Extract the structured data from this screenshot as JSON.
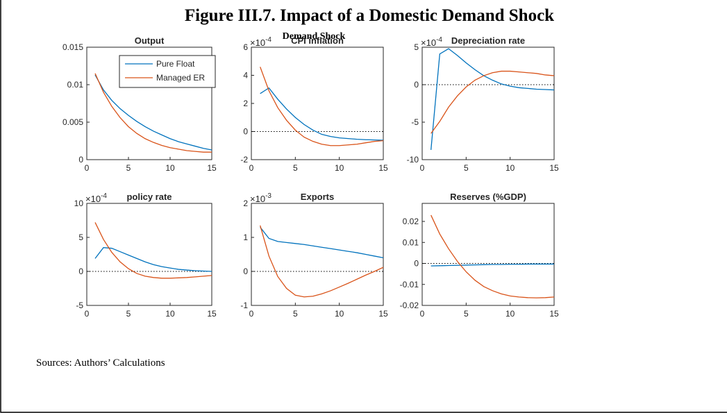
{
  "title": "Figure III.7. Impact of a Domestic Demand Shock",
  "subtitle": "Demand Shock",
  "source": "Sources: Authors’ Calculations",
  "chart_data": [
    {
      "type": "line",
      "title": "Output",
      "legend": "northeast",
      "x": [
        1,
        2,
        3,
        4,
        5,
        6,
        7,
        8,
        9,
        10,
        11,
        12,
        13,
        14,
        15
      ],
      "xlim": [
        0,
        15
      ],
      "xticks": [
        0,
        5,
        10,
        15
      ],
      "ylim": [
        0,
        0.015
      ],
      "yticks": [
        0,
        0.005,
        0.01,
        0.015
      ],
      "zero_line": false,
      "series": [
        {
          "name": "Pure Float",
          "color": "#0072BD",
          "values": [
            0.0113,
            0.0093,
            0.0079,
            0.0068,
            0.0059,
            0.0051,
            0.0044,
            0.0038,
            0.0033,
            0.0028,
            0.0024,
            0.0021,
            0.0018,
            0.0015,
            0.0013
          ]
        },
        {
          "name": "Managed ER",
          "color": "#D95319",
          "values": [
            0.0115,
            0.009,
            0.0071,
            0.0056,
            0.0044,
            0.0035,
            0.0028,
            0.0023,
            0.0019,
            0.0016,
            0.0014,
            0.0012,
            0.0011,
            0.001,
            0.001
          ]
        }
      ]
    },
    {
      "type": "line",
      "title": "CPI inflation",
      "y_scale_label": "×10",
      "y_scale_exponent": "-4",
      "x": [
        1,
        2,
        3,
        4,
        5,
        6,
        7,
        8,
        9,
        10,
        11,
        12,
        13,
        14,
        15
      ],
      "xlim": [
        0,
        15
      ],
      "xticks": [
        0,
        5,
        10,
        15
      ],
      "ylim": [
        -2,
        6
      ],
      "yticks": [
        -2,
        0,
        2,
        4,
        6
      ],
      "zero_line": true,
      "series": [
        {
          "name": "Pure Float",
          "color": "#0072BD",
          "values": [
            2.7,
            3.1,
            2.3,
            1.6,
            1.0,
            0.5,
            0.1,
            -0.2,
            -0.35,
            -0.45,
            -0.5,
            -0.55,
            -0.58,
            -0.6,
            -0.62
          ]
        },
        {
          "name": "Managed ER",
          "color": "#D95319",
          "values": [
            4.6,
            2.9,
            1.7,
            0.8,
            0.1,
            -0.4,
            -0.7,
            -0.9,
            -1.0,
            -1.0,
            -0.95,
            -0.9,
            -0.8,
            -0.7,
            -0.65
          ]
        }
      ]
    },
    {
      "type": "line",
      "title": "Depreciation rate",
      "y_scale_label": "×10",
      "y_scale_exponent": "-4",
      "x": [
        1,
        2,
        3,
        4,
        5,
        6,
        7,
        8,
        9,
        10,
        11,
        12,
        13,
        14,
        15
      ],
      "xlim": [
        0,
        15
      ],
      "xticks": [
        0,
        5,
        10,
        15
      ],
      "ylim": [
        -10,
        5
      ],
      "yticks": [
        -10,
        -5,
        0,
        5
      ],
      "zero_line": true,
      "series": [
        {
          "name": "Pure Float",
          "color": "#0072BD",
          "values": [
            -8.7,
            4.1,
            4.8,
            3.9,
            2.9,
            2.0,
            1.2,
            0.6,
            0.1,
            -0.2,
            -0.4,
            -0.5,
            -0.6,
            -0.65,
            -0.7
          ]
        },
        {
          "name": "Managed ER",
          "color": "#D95319",
          "values": [
            -6.5,
            -4.9,
            -3.0,
            -1.5,
            -0.3,
            0.6,
            1.2,
            1.6,
            1.8,
            1.8,
            1.7,
            1.6,
            1.5,
            1.3,
            1.2
          ]
        }
      ]
    },
    {
      "type": "line",
      "title": "policy rate",
      "y_scale_label": "×10",
      "y_scale_exponent": "-4",
      "x": [
        1,
        2,
        3,
        4,
        5,
        6,
        7,
        8,
        9,
        10,
        11,
        12,
        13,
        14,
        15
      ],
      "xlim": [
        0,
        15
      ],
      "xticks": [
        0,
        5,
        10,
        15
      ],
      "ylim": [
        -5,
        10
      ],
      "yticks": [
        -5,
        0,
        5,
        10
      ],
      "zero_line": true,
      "series": [
        {
          "name": "Pure Float",
          "color": "#0072BD",
          "values": [
            1.9,
            3.5,
            3.4,
            2.9,
            2.4,
            1.9,
            1.4,
            1.0,
            0.7,
            0.5,
            0.3,
            0.2,
            0.1,
            0.05,
            0
          ]
        },
        {
          "name": "Managed ER",
          "color": "#D95319",
          "values": [
            7.2,
            4.7,
            2.8,
            1.4,
            0.4,
            -0.3,
            -0.7,
            -0.9,
            -1.0,
            -1.0,
            -0.95,
            -0.9,
            -0.8,
            -0.7,
            -0.6
          ]
        }
      ]
    },
    {
      "type": "line",
      "title": "Exports",
      "y_scale_label": "×10",
      "y_scale_exponent": "-3",
      "x": [
        1,
        2,
        3,
        4,
        5,
        6,
        7,
        8,
        9,
        10,
        11,
        12,
        13,
        14,
        15
      ],
      "xlim": [
        0,
        15
      ],
      "xticks": [
        0,
        5,
        10,
        15
      ],
      "ylim": [
        -1,
        2
      ],
      "yticks": [
        -1,
        0,
        1,
        2
      ],
      "zero_line": true,
      "series": [
        {
          "name": "Pure Float",
          "color": "#0072BD",
          "values": [
            1.3,
            0.97,
            0.88,
            0.85,
            0.82,
            0.79,
            0.75,
            0.71,
            0.67,
            0.63,
            0.59,
            0.55,
            0.5,
            0.45,
            0.4
          ]
        },
        {
          "name": "Managed ER",
          "color": "#D95319",
          "values": [
            1.35,
            0.45,
            -0.15,
            -0.5,
            -0.7,
            -0.75,
            -0.73,
            -0.66,
            -0.57,
            -0.46,
            -0.35,
            -0.23,
            -0.11,
            0.0,
            0.12
          ]
        }
      ]
    },
    {
      "type": "line",
      "title": "Reserves (%GDP)",
      "x": [
        1,
        2,
        3,
        4,
        5,
        6,
        7,
        8,
        9,
        10,
        11,
        12,
        13,
        14,
        15
      ],
      "xlim": [
        0,
        15
      ],
      "xticks": [
        0,
        5,
        10,
        15
      ],
      "ylim": [
        -0.02,
        0.0286
      ],
      "yticks": [
        -0.02,
        -0.01,
        0,
        0.01,
        0.02
      ],
      "zero_line": true,
      "series": [
        {
          "name": "Pure Float",
          "color": "#0072BD",
          "values": [
            -0.0012,
            -0.0011,
            -0.001,
            -0.0009,
            -0.0008,
            -0.0007,
            -0.0006,
            -0.0005,
            -0.0005,
            -0.0004,
            -0.0004,
            -0.0003,
            -0.0003,
            -0.0003,
            -0.0003
          ]
        },
        {
          "name": "Managed ER",
          "color": "#D95319",
          "values": [
            0.023,
            0.014,
            0.007,
            0.001,
            -0.004,
            -0.008,
            -0.011,
            -0.013,
            -0.0145,
            -0.0155,
            -0.016,
            -0.0163,
            -0.0164,
            -0.0163,
            -0.016
          ]
        }
      ]
    }
  ]
}
